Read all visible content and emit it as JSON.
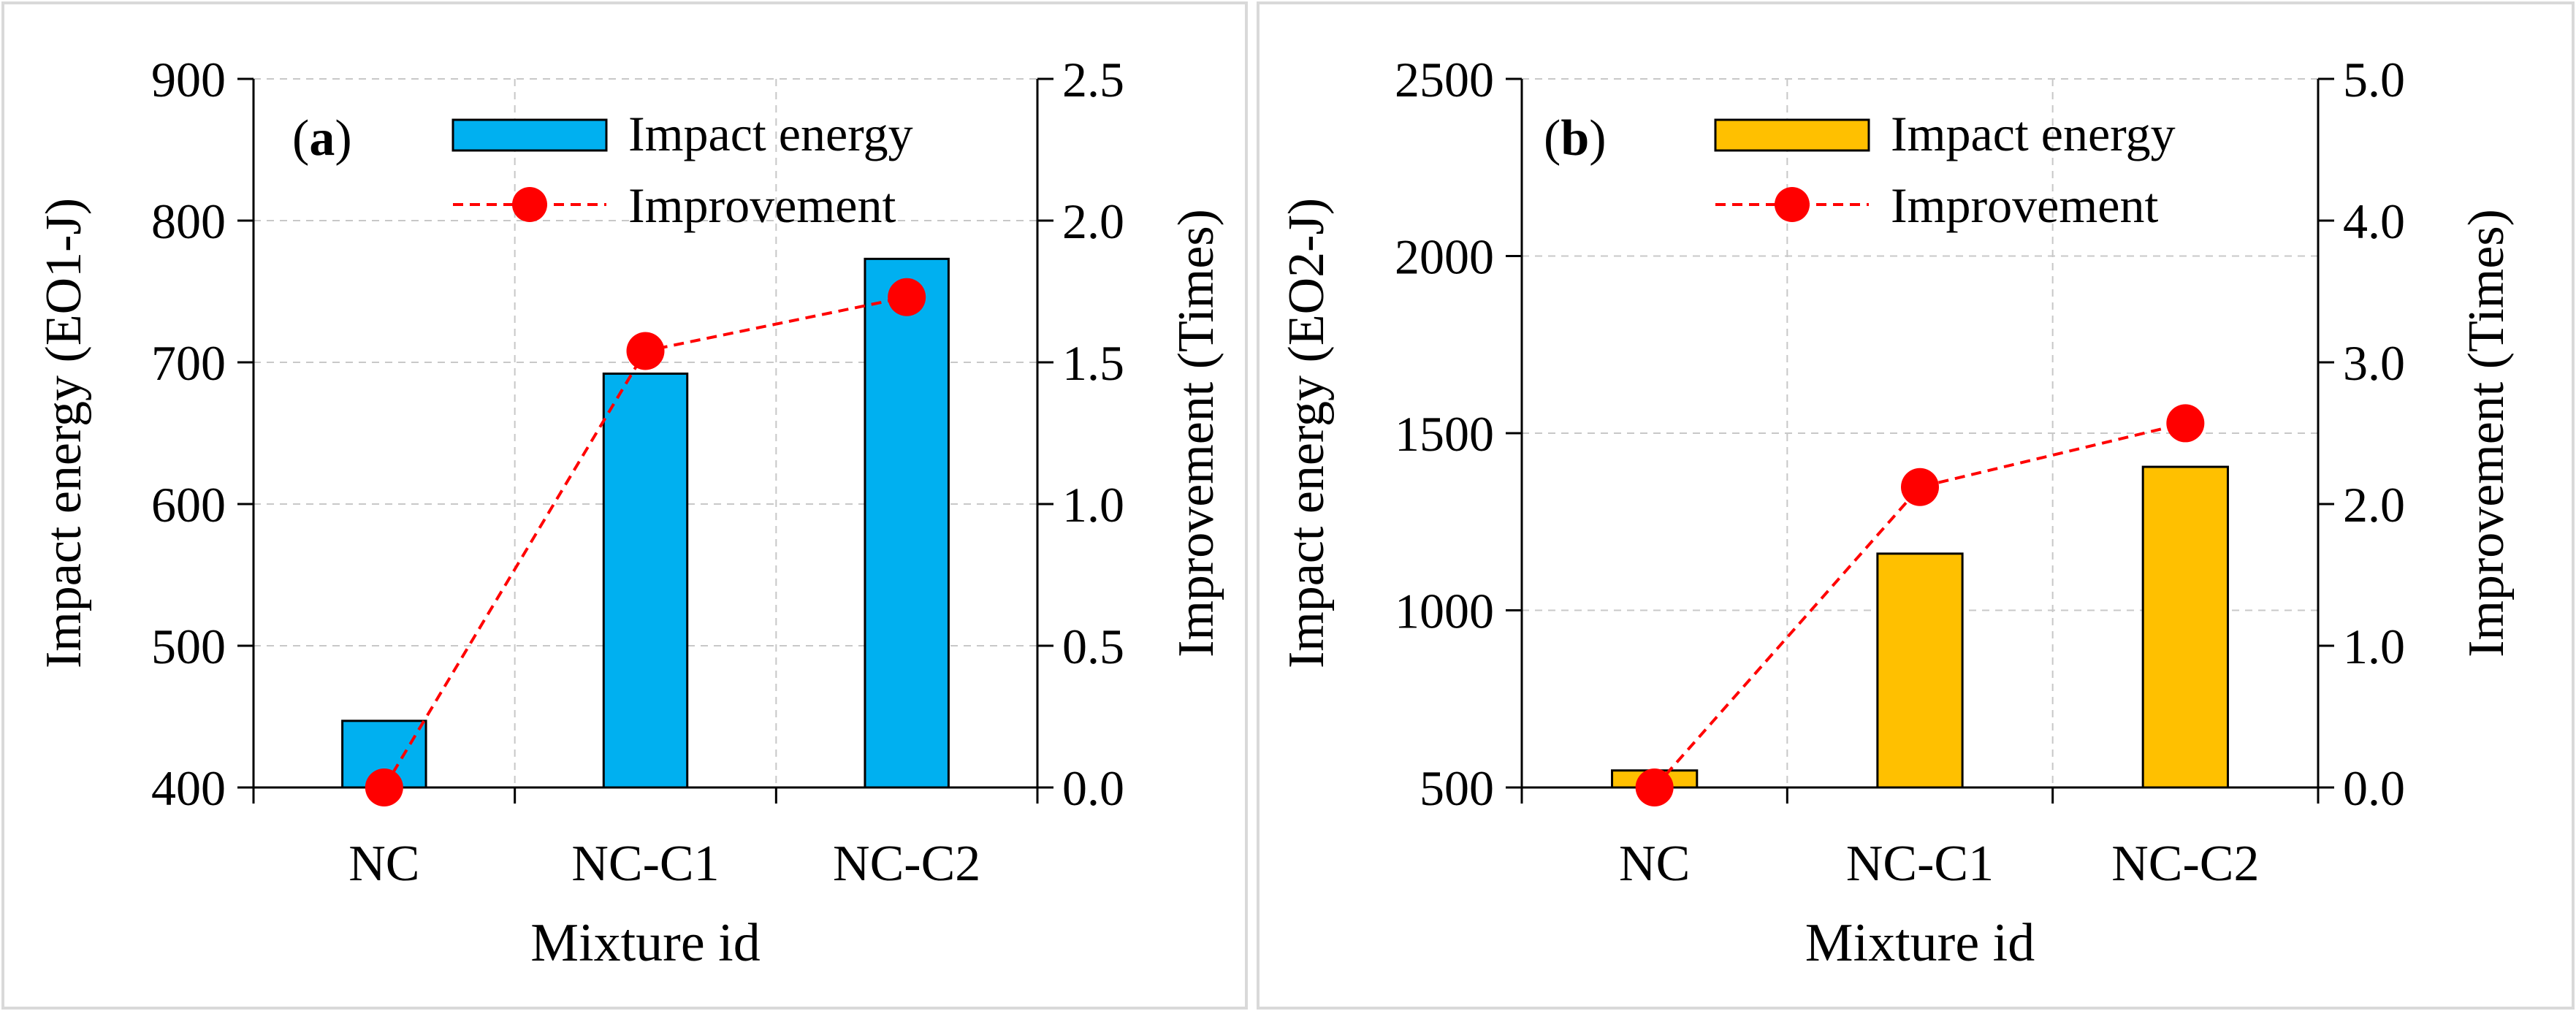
{
  "chart_data": [
    {
      "type": "bar",
      "panel_label": "(a)",
      "panel_letter": "a",
      "categories": [
        "NC",
        "NC-C1",
        "NC-C2"
      ],
      "xlabel": "Mixture id",
      "ylabel": "Impact energy (EO1-J)",
      "y2label": "Improvement (Times)",
      "ylim": [
        400,
        900
      ],
      "yticks": [
        400,
        500,
        600,
        700,
        800,
        900
      ],
      "y2lim": [
        0,
        2.5
      ],
      "y2ticks": [
        0.0,
        0.5,
        1.0,
        1.5,
        2.0,
        2.5
      ],
      "grid": true,
      "legend_position": "top-center",
      "series": [
        {
          "name": "Impact energy",
          "type": "bar",
          "axis": "left",
          "color": "#00b0f0",
          "values": [
            447,
            692,
            773
          ]
        },
        {
          "name": "Improvement",
          "type": "line",
          "axis": "right",
          "color": "#ff0000",
          "style": "dashed",
          "marker": "circle",
          "values": [
            0.0,
            1.54,
            1.73
          ]
        }
      ]
    },
    {
      "type": "bar",
      "panel_label": "(b)",
      "panel_letter": "b",
      "categories": [
        "NC",
        "NC-C1",
        "NC-C2"
      ],
      "xlabel": "Mixture id",
      "ylabel": "Impact energy (EO2-J)",
      "y2label": "Improvement (Times)",
      "ylim": [
        500,
        2500
      ],
      "yticks": [
        500,
        1000,
        1500,
        2000,
        2500
      ],
      "y2lim": [
        0,
        5.0
      ],
      "y2ticks": [
        0.0,
        1.0,
        2.0,
        3.0,
        4.0,
        5.0
      ],
      "grid": true,
      "legend_position": "top-center",
      "series": [
        {
          "name": "Impact energy",
          "type": "bar",
          "axis": "left",
          "color": "#ffc000",
          "values": [
            548,
            1160,
            1405
          ]
        },
        {
          "name": "Improvement",
          "type": "line",
          "axis": "right",
          "color": "#ff0000",
          "style": "dashed",
          "marker": "circle",
          "values": [
            0.0,
            2.12,
            2.57
          ]
        }
      ]
    }
  ]
}
